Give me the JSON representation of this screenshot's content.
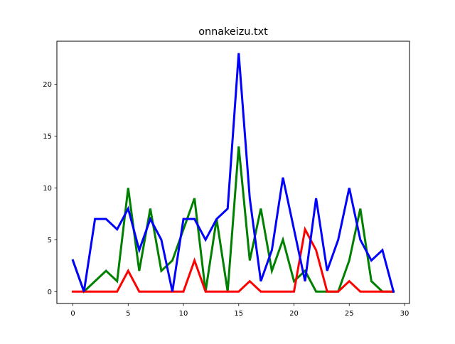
{
  "chart_data": {
    "type": "line",
    "title": "onnakeizu.txt",
    "xlabel": "",
    "ylabel": "",
    "xlim": [
      -1.45,
      30.45
    ],
    "ylim": [
      -1.15,
      24.15
    ],
    "xticks": [
      0,
      5,
      10,
      15,
      20,
      25,
      30
    ],
    "yticks": [
      0,
      5,
      10,
      15,
      20
    ],
    "grid": false,
    "x": [
      0,
      1,
      2,
      3,
      4,
      5,
      6,
      7,
      8,
      9,
      10,
      11,
      12,
      13,
      14,
      15,
      16,
      17,
      18,
      19,
      20,
      21,
      22,
      23,
      24,
      25,
      26,
      27,
      28,
      29
    ],
    "series": [
      {
        "color": "#008000",
        "values": [
          3,
          0,
          1,
          2,
          1,
          10,
          2,
          8,
          2,
          3,
          6,
          9,
          0,
          7,
          0,
          14,
          3,
          8,
          2,
          5,
          1,
          2,
          0,
          0,
          0,
          3,
          8,
          1,
          0,
          0
        ]
      },
      {
        "color": "#ff0000",
        "values": [
          0,
          0,
          0,
          0,
          0,
          2,
          0,
          0,
          0,
          0,
          0,
          3,
          0,
          0,
          0,
          0,
          1,
          0,
          0,
          0,
          0,
          6,
          4,
          0,
          0,
          1,
          0,
          0,
          0,
          0
        ]
      },
      {
        "color": "#0000ff",
        "values": [
          3,
          0,
          7,
          7,
          6,
          8,
          4,
          7,
          5,
          0,
          7,
          7,
          5,
          7,
          8,
          23,
          9,
          1,
          4,
          11,
          6,
          1,
          9,
          2,
          5,
          10,
          5,
          3,
          4,
          0
        ]
      }
    ]
  }
}
